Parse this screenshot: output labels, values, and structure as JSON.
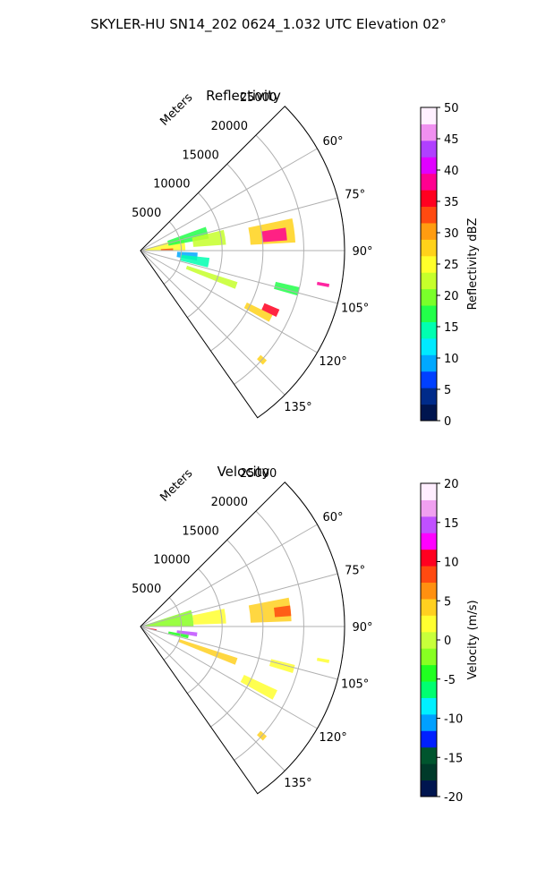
{
  "figure": {
    "suptitle": "SKYLER-HU  SN14_202  0624_1.032 UTC Elevation 02°"
  },
  "chart_data": [
    {
      "type": "polar-sector",
      "title": "Reflectivity",
      "range_label": "Meters",
      "theta_min_deg": 45,
      "theta_max_deg": 145,
      "r_max": 25000,
      "r_ticks": [
        5000,
        10000,
        15000,
        20000,
        25000
      ],
      "theta_ticks": [
        60,
        75,
        90,
        105,
        120,
        135
      ],
      "grid": true,
      "colorbar": {
        "label": "Reflectivity dBZ",
        "min": 0,
        "max": 50,
        "ticks": [
          0,
          5,
          10,
          15,
          20,
          25,
          30,
          35,
          40,
          45,
          50
        ]
      },
      "echoes": [
        {
          "az_start": 73,
          "az_end": 90,
          "r_start": 600,
          "r_end": 5500,
          "value": 25
        },
        {
          "az_start": 70,
          "az_end": 80,
          "r_start": 3500,
          "r_end": 8500,
          "value": 17
        },
        {
          "az_start": 76,
          "az_end": 86,
          "r_start": 6500,
          "r_end": 10500,
          "value": 22
        },
        {
          "az_start": 86,
          "az_end": 90,
          "r_start": 2500,
          "r_end": 4000,
          "value": 34
        },
        {
          "az_start": 92,
          "az_end": 100,
          "r_start": 4500,
          "r_end": 7000,
          "value": 8
        },
        {
          "az_start": 96,
          "az_end": 104,
          "r_start": 5000,
          "r_end": 8500,
          "value": 15
        },
        {
          "az_start": 78,
          "az_end": 87,
          "r_start": 13500,
          "r_end": 19000,
          "value": 28
        },
        {
          "az_start": 81,
          "az_end": 86,
          "r_start": 15000,
          "r_end": 18000,
          "value": 37
        },
        {
          "az_start": 108,
          "az_end": 112,
          "r_start": 6000,
          "r_end": 12500,
          "value": 22
        },
        {
          "az_start": 116,
          "az_end": 119,
          "r_start": 14500,
          "r_end": 18000,
          "value": 27
        },
        {
          "az_start": 113,
          "az_end": 116,
          "r_start": 16500,
          "r_end": 18500,
          "value": 36
        },
        {
          "az_start": 103,
          "az_end": 106,
          "r_start": 17000,
          "r_end": 20000,
          "value": 16
        },
        {
          "az_start": 100,
          "az_end": 101,
          "r_start": 22000,
          "r_end": 23500,
          "value": 37
        },
        {
          "az_start": 131,
          "az_end": 133,
          "r_start": 19500,
          "r_end": 20500,
          "value": 28
        }
      ]
    },
    {
      "type": "polar-sector",
      "title": "Velocity",
      "range_label": "Meters",
      "theta_min_deg": 45,
      "theta_max_deg": 145,
      "r_max": 25000,
      "r_ticks": [
        5000,
        10000,
        15000,
        20000,
        25000
      ],
      "theta_ticks": [
        60,
        75,
        90,
        105,
        120,
        135
      ],
      "grid": true,
      "colorbar": {
        "label": "Velocity (m/s)",
        "min": -20,
        "max": 20,
        "ticks": [
          -20,
          -15,
          -10,
          -5,
          0,
          5,
          10,
          15,
          20
        ]
      },
      "echoes": [
        {
          "az_start": 72,
          "az_end": 90,
          "r_start": 600,
          "r_end": 6500,
          "value": -3
        },
        {
          "az_start": 78,
          "az_end": 88,
          "r_start": 6500,
          "r_end": 10500,
          "value": 3
        },
        {
          "az_start": 100,
          "az_end": 104,
          "r_start": 600,
          "r_end": 2000,
          "value": 11
        },
        {
          "az_start": 96,
          "az_end": 100,
          "r_start": 4500,
          "r_end": 7000,
          "value": 15
        },
        {
          "az_start": 100,
          "az_end": 104,
          "r_start": 3500,
          "r_end": 6000,
          "value": -5
        },
        {
          "az_start": 79,
          "az_end": 88,
          "r_start": 13500,
          "r_end": 18500,
          "value": 4
        },
        {
          "az_start": 82,
          "az_end": 86,
          "r_start": 16500,
          "r_end": 18500,
          "value": 8
        },
        {
          "az_start": 108,
          "az_end": 112,
          "r_start": 5000,
          "r_end": 12500,
          "value": 5
        },
        {
          "az_start": 115,
          "az_end": 119,
          "r_start": 14000,
          "r_end": 18500,
          "value": 2
        },
        {
          "az_start": 104,
          "az_end": 107,
          "r_start": 16500,
          "r_end": 19500,
          "value": 3
        },
        {
          "az_start": 100,
          "az_end": 101,
          "r_start": 22000,
          "r_end": 23500,
          "value": 3
        },
        {
          "az_start": 131,
          "az_end": 133,
          "r_start": 19500,
          "r_end": 20500,
          "value": 4
        }
      ]
    }
  ],
  "colormaps": {
    "reflectivity": [
      "#00154f",
      "#002b8a",
      "#0040ff",
      "#00a8ff",
      "#00eaff",
      "#00ffb0",
      "#22ff4a",
      "#7aff2a",
      "#c6ff2a",
      "#ffff2a",
      "#ffd21a",
      "#ff9c10",
      "#ff4a10",
      "#ff0020",
      "#ff0090",
      "#e000ff",
      "#b040ff",
      "#f090f0",
      "#fff0ff"
    ],
    "velocity": [
      "#00154f",
      "#003a2a",
      "#00552e",
      "#0020ff",
      "#00a0ff",
      "#00f0ff",
      "#00ff70",
      "#20ff20",
      "#88ff22",
      "#c8ff3a",
      "#ffff30",
      "#ffd020",
      "#ff9010",
      "#ff4a10",
      "#ff0020",
      "#ff00ff",
      "#c050ff",
      "#f0a0f0",
      "#ffeeff"
    ]
  }
}
